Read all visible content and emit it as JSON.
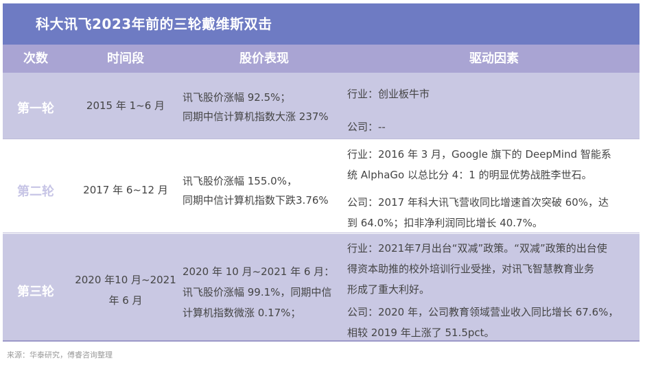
{
  "title": "科大讯飞2023年前的三轮戴维斯双击",
  "headers": {
    "round": "次数",
    "period": "时间段",
    "performance": "股价表现",
    "drivers": "驱动因素"
  },
  "rows": [
    {
      "round": "第一轮",
      "period": [
        "2015 年 1~6 月"
      ],
      "performance": [
        "讯飞股价涨幅 92.5%；",
        "同期中信计算机指数大涨 237%"
      ],
      "industry": [
        "行业：创业板牛市"
      ],
      "company": [
        "公司：--"
      ]
    },
    {
      "round": "第二轮",
      "period": [
        "2017 年 6~12 月"
      ],
      "performance": [
        "讯飞股价涨幅 155.0%，",
        "同期中信计算机指数下跌3.76%"
      ],
      "industry": [
        "行业：2016 年 3 月，Google 旗下的 DeepMind 智能系",
        "统 AlphaGo 以总比分 4：1 的明显优势战胜李世石。"
      ],
      "company": [
        "公司：2017 年科大讯飞营收同比增速首次突破 60%，达",
        "到 64.0%；扣非净利润同比增长 40.7%。"
      ]
    },
    {
      "round": "第三轮",
      "period": [
        "2020 年10 月~2021",
        "年 6 月"
      ],
      "performance": [
        "2020 年 10 月~2021 年 6 月：",
        "讯飞股价涨幅 99.1%，同期中信",
        "计算机指数微涨 0.17%；"
      ],
      "industry": [
        "行业：2021年7月出台“双减”政策。“双减”政策的出台使",
        "得资本助推的校外培训行业受挫，对讯飞智慧教育业务",
        "形成了重大利好。"
      ],
      "company": [
        "公司：2020 年，公司教育领域营业收入同比增长 67.6%，",
        "相较 2019 年上涨了 51.5pct。"
      ]
    }
  ],
  "source": "来源：华泰研究，傅睿咨询整理"
}
